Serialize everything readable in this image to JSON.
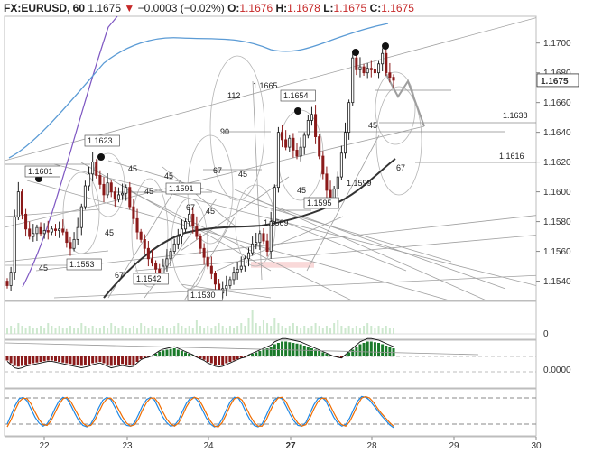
{
  "header": {
    "symbol": "FX:EURUSD, 60",
    "last": "1.1675",
    "change_icon": "down-triangle-icon",
    "change": "−0.0003 (−0.02%)",
    "open_label": "O:",
    "open": "1.1676",
    "high_label": "H:",
    "high": "1.1678",
    "low_label": "L:",
    "low": "1.1675",
    "close_label": "C:",
    "close": "1.1675"
  },
  "colors": {
    "bull": "#1a7a2a",
    "bear": "#8b1a1a",
    "accent_red": "#c62828",
    "wave_blue": "#1e88e5",
    "wave_orange": "#ef6c00",
    "bollinger_outer": "#7e57c2",
    "bollinger_inner": "#5b9bd5",
    "sma": "#333333",
    "resistance_band": "#f6c9c9"
  },
  "chart_data": [
    {
      "type": "candlestick",
      "title": "",
      "y_ticks": [
        "1.1540",
        "1.1560",
        "1.1580",
        "1.1600",
        "1.1620",
        "1.1640",
        "1.1660",
        "1.1680",
        "1.1700"
      ],
      "ylim": [
        1.1527,
        1.1718
      ],
      "current_price": "1.1675",
      "x_labels": [
        {
          "text": "22",
          "bold": false
        },
        {
          "text": "23",
          "bold": false
        },
        {
          "text": "24",
          "bold": false
        },
        {
          "text": "27",
          "bold": true
        },
        {
          "text": "28",
          "bold": false
        },
        {
          "text": "29",
          "bold": false
        },
        {
          "text": "30",
          "bold": false
        }
      ],
      "closes": [
        1.1537,
        1.1546,
        1.1583,
        1.16,
        1.1585,
        1.1575,
        1.157,
        1.1572,
        1.1576,
        1.1572,
        1.1574,
        1.1573,
        1.1575,
        1.1574,
        1.1575,
        1.1573,
        1.1566,
        1.1562,
        1.1568,
        1.1576,
        1.159,
        1.1604,
        1.1612,
        1.162,
        1.1611,
        1.1605,
        1.1598,
        1.1606,
        1.16,
        1.1595,
        1.1598,
        1.1599,
        1.1603,
        1.159,
        1.1582,
        1.1573,
        1.1568,
        1.1562,
        1.1555,
        1.1552,
        1.1548,
        1.1545,
        1.155,
        1.1555,
        1.156,
        1.1565,
        1.157,
        1.1575,
        1.158,
        1.1585,
        1.1577,
        1.157,
        1.1562,
        1.1556,
        1.155,
        1.1545,
        1.1538,
        1.1532,
        1.1535,
        1.1537,
        1.1541,
        1.1546,
        1.1548,
        1.155,
        1.1555,
        1.1559,
        1.1565,
        1.1566,
        1.1572,
        1.1567,
        1.156,
        1.158,
        1.1603,
        1.164,
        1.1635,
        1.163,
        1.1636,
        1.1628,
        1.1624,
        1.163,
        1.1638,
        1.1648,
        1.1652,
        1.1637,
        1.1624,
        1.1612,
        1.1601,
        1.1595,
        1.1602,
        1.161,
        1.1626,
        1.164,
        1.166,
        1.169,
        1.1682,
        1.1684,
        1.168,
        1.1683,
        1.1682,
        1.168,
        1.1686,
        1.1693,
        1.168,
        1.1677,
        1.1675
      ],
      "annotations": [
        {
          "text": "1.1601",
          "boxed": true
        },
        {
          "text": "1.1623",
          "boxed": true
        },
        {
          "text": "1.1553",
          "boxed": true
        },
        {
          "text": "1.1542",
          "boxed": true
        },
        {
          "text": "1.1591",
          "boxed": true
        },
        {
          "text": "1.1530",
          "boxed": true
        },
        {
          "text": "1.1569",
          "boxed": false
        },
        {
          "text": "1.1665",
          "boxed": false
        },
        {
          "text": "1.1654",
          "boxed": true
        },
        {
          "text": "1.1599",
          "boxed": false
        },
        {
          "text": "1.1595",
          "boxed": true
        },
        {
          "text": "1.1638",
          "boxed": false
        },
        {
          "text": "1.1616",
          "boxed": false
        }
      ],
      "angle_labels": [
        "45",
        "45",
        "45",
        "45",
        "67",
        "67",
        "45",
        "45",
        "45",
        "90",
        "67",
        "45",
        "45",
        "67",
        "112"
      ]
    },
    {
      "type": "bar",
      "title": "",
      "y_ticks": [
        "0"
      ],
      "values_relative": [
        2,
        3,
        2,
        4,
        3,
        2,
        3,
        2,
        2,
        3,
        2,
        4,
        3,
        2,
        3,
        2,
        2,
        3,
        2,
        2,
        4,
        3,
        2,
        3,
        2,
        2,
        3,
        2,
        4,
        3,
        2,
        3,
        2,
        2,
        3,
        2,
        4,
        3,
        2,
        3,
        2,
        2,
        3,
        2,
        2,
        3,
        4,
        3,
        2,
        3,
        2,
        5,
        3,
        2,
        3,
        2,
        3,
        4,
        3,
        2,
        3,
        2,
        3,
        4,
        3,
        6,
        9,
        4,
        3,
        5,
        4,
        3,
        6,
        4,
        3,
        2,
        3,
        4,
        3,
        2,
        3,
        2,
        3,
        4,
        3,
        2,
        3,
        2,
        4,
        5,
        3,
        2,
        3,
        2,
        3,
        2,
        3,
        4,
        3,
        2,
        3,
        2,
        3,
        2,
        2
      ]
    },
    {
      "type": "bar",
      "title": "",
      "y_ticks": [
        "0.0000"
      ],
      "values": [
        -6,
        -10,
        -14,
        -15,
        -14,
        -12,
        -11,
        -10,
        -9,
        -8,
        -7,
        -6,
        -6,
        -7,
        -8,
        -9,
        -10,
        -11,
        -12,
        -13,
        -14,
        -13,
        -12,
        -10,
        -9,
        -8,
        -10,
        -12,
        -14,
        -13,
        -12,
        -11,
        -12,
        -13,
        -12,
        -8,
        -4,
        -2,
        -1,
        1,
        4,
        7,
        9,
        10,
        11,
        12,
        10,
        8,
        6,
        4,
        2,
        -1,
        -3,
        -5,
        -8,
        -10,
        -12,
        -13,
        -12,
        -10,
        -8,
        -6,
        -4,
        -2,
        -1,
        2,
        4,
        6,
        8,
        10,
        12,
        14,
        18,
        20,
        22,
        22,
        21,
        20,
        19,
        18,
        16,
        14,
        12,
        10,
        8,
        6,
        4,
        2,
        0,
        -1,
        -2,
        2,
        6,
        10,
        14,
        18,
        20,
        22,
        22,
        21,
        20,
        18,
        16,
        14,
        12
      ]
    },
    {
      "type": "line",
      "title": "",
      "series": [
        {
          "values": [
            20,
            45,
            70,
            88,
            92,
            82,
            60,
            38,
            22,
            14,
            20,
            38,
            62,
            82,
            92,
            88,
            70,
            48,
            28,
            16,
            12,
            20,
            40,
            64,
            84,
            92,
            86,
            66,
            44,
            26,
            16,
            14,
            24,
            46,
            70,
            86,
            92,
            84,
            62,
            40,
            24,
            14,
            16,
            30,
            54,
            76,
            90,
            92,
            80,
            58,
            36,
            20,
            12,
            16,
            34,
            58,
            80,
            92,
            90,
            74,
            50,
            30,
            16,
            12,
            20,
            42,
            66,
            84,
            92,
            88,
            68,
            46,
            28,
            16,
            14,
            24,
            48,
            72,
            88,
            92,
            82,
            60,
            38,
            22,
            14,
            18,
            36,
            60,
            82,
            94,
            92,
            84,
            70,
            56,
            42,
            30,
            18,
            10
          ]
        },
        {
          "values": [
            12,
            32,
            58,
            80,
            90,
            88,
            74,
            52,
            32,
            18,
            16,
            28,
            50,
            72,
            88,
            92,
            80,
            60,
            40,
            22,
            14,
            16,
            30,
            52,
            74,
            88,
            90,
            78,
            58,
            38,
            22,
            14,
            18,
            34,
            58,
            78,
            90,
            90,
            76,
            54,
            34,
            20,
            14,
            22,
            42,
            66,
            84,
            92,
            88,
            70,
            48,
            28,
            14,
            12,
            24,
            46,
            70,
            88,
            92,
            84,
            64,
            42,
            24,
            14,
            14,
            30,
            54,
            76,
            90,
            92,
            80,
            58,
            38,
            22,
            14,
            18,
            36,
            60,
            80,
            90,
            88,
            72,
            50,
            30,
            18,
            14,
            26,
            48,
            72,
            90,
            94,
            90,
            78,
            62,
            48,
            36,
            24,
            14
          ]
        }
      ]
    }
  ]
}
